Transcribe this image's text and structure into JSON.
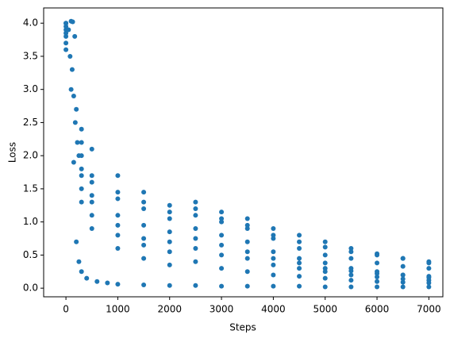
{
  "chart_data": {
    "type": "scatter",
    "xlabel": "Steps",
    "ylabel": "Loss",
    "color": "#1f77b4",
    "xlim": [
      -430,
      7270
    ],
    "ylim": [
      -0.13,
      4.23
    ],
    "xticks": [
      0,
      1000,
      2000,
      3000,
      4000,
      5000,
      6000,
      7000
    ],
    "yticks": [
      {
        "value": 0,
        "label": "0.0"
      },
      0.5,
      {
        "value": 1,
        "label": "1.0"
      },
      1.5,
      {
        "value": 2,
        "label": "2.0"
      },
      2.5,
      {
        "value": 3,
        "label": "3.0"
      },
      3.5,
      {
        "value": 4,
        "label": "4.0"
      }
    ],
    "grid": false,
    "x": [
      0,
      100,
      150,
      200,
      250,
      300,
      400,
      600,
      800,
      1000,
      1500,
      2000,
      2500,
      3000,
      3500,
      4000,
      4500,
      5000,
      5500,
      6000,
      6500,
      7000,
      0,
      300,
      500,
      1000,
      1500,
      2000,
      2500,
      3000,
      3500,
      4000,
      4500,
      5000,
      5500,
      6000,
      6500,
      7000,
      0,
      300,
      500,
      1000,
      1500,
      2000,
      2500,
      3000,
      3500,
      4000,
      4500,
      5000,
      5500,
      6000,
      6500,
      7000,
      0,
      300,
      500,
      1000,
      1500,
      2000,
      2500,
      3000,
      3500,
      4000,
      4500,
      5000,
      5500,
      6000,
      6500,
      7000,
      0,
      300,
      500,
      1000,
      1500,
      2000,
      2500,
      3000,
      3500,
      4000,
      4500,
      5000,
      5500,
      6000,
      6500,
      7000,
      0,
      300,
      500,
      1000,
      1500,
      2000,
      2500,
      3000,
      3500,
      4000,
      4500,
      5000,
      5500,
      6000,
      6500,
      7000,
      0,
      300,
      500,
      1000,
      1500,
      2000,
      2500,
      3000,
      3500,
      4000,
      4500,
      5000,
      5500,
      6000,
      6500,
      7000,
      0,
      300,
      500,
      1000,
      1500,
      2000,
      2500,
      3000,
      3500,
      4000,
      4500,
      5000,
      5500,
      6000,
      6500,
      7000,
      50,
      80,
      100,
      120,
      130,
      150,
      170,
      180,
      200,
      220,
      250
    ],
    "values": [
      4.0,
      3.0,
      1.9,
      0.7,
      0.4,
      0.25,
      0.15,
      0.1,
      0.08,
      0.06,
      0.05,
      0.04,
      0.04,
      0.03,
      0.03,
      0.03,
      0.03,
      0.02,
      0.02,
      0.02,
      0.02,
      0.02,
      4.0,
      2.4,
      2.1,
      1.7,
      1.45,
      1.25,
      1.2,
      1.05,
      0.95,
      0.8,
      0.7,
      0.62,
      0.55,
      0.5,
      0.45,
      0.4,
      3.9,
      2.0,
      1.6,
      1.35,
      1.2,
      1.05,
      1.3,
      1.0,
      0.9,
      0.75,
      0.6,
      0.5,
      0.45,
      0.38,
      0.33,
      0.3,
      3.8,
      1.8,
      1.4,
      1.1,
      0.95,
      0.85,
      0.9,
      0.8,
      0.7,
      0.55,
      0.45,
      0.38,
      0.3,
      0.25,
      0.2,
      0.18,
      3.7,
      1.5,
      1.1,
      0.8,
      0.65,
      0.55,
      0.6,
      0.5,
      0.45,
      0.35,
      0.3,
      0.25,
      0.2,
      0.17,
      0.14,
      0.12,
      3.6,
      1.3,
      0.9,
      0.6,
      0.45,
      0.35,
      0.4,
      0.3,
      0.25,
      0.2,
      0.18,
      0.15,
      0.12,
      0.1,
      0.09,
      0.08,
      3.95,
      2.2,
      1.7,
      1.45,
      1.3,
      1.15,
      1.1,
      1.15,
      1.05,
      0.9,
      0.8,
      0.7,
      0.6,
      0.52,
      0.45,
      0.38,
      3.85,
      1.7,
      1.3,
      0.95,
      0.75,
      0.7,
      0.75,
      0.65,
      0.55,
      0.45,
      0.38,
      0.3,
      0.26,
      0.22,
      0.2,
      0.16,
      3.9,
      3.5,
      4.03,
      3.3,
      4.02,
      2.9,
      3.8,
      2.5,
      2.7,
      2.2,
      2.0
    ]
  }
}
